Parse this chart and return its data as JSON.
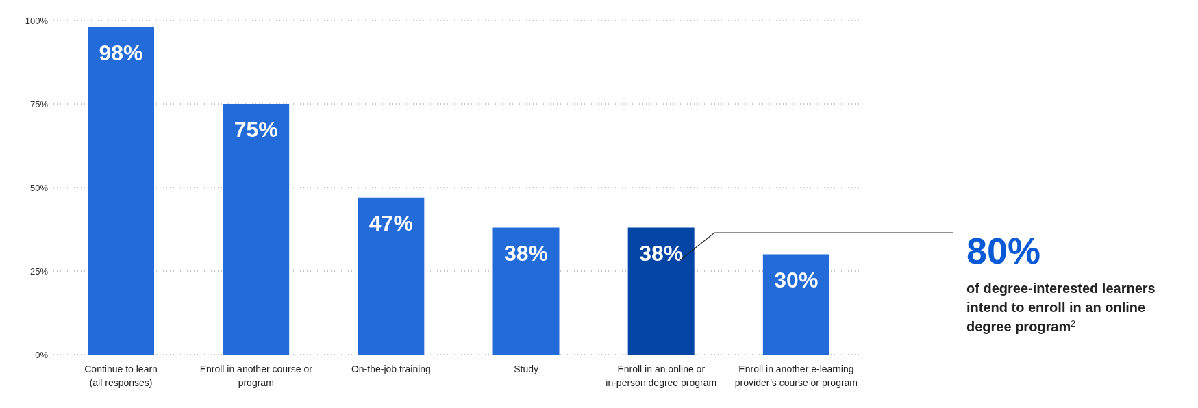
{
  "chart_data": {
    "type": "bar",
    "categories": [
      "Continue to learn\n(all responses)",
      "Enroll in another course or\nprogram",
      "On-the-job training",
      "Study",
      "Enroll in an online or\nin-person degree program",
      "Enroll in another e-learning\nprovider’s course or program"
    ],
    "values": [
      98,
      75,
      47,
      38,
      38,
      30
    ],
    "colors": [
      "#226bd9",
      "#226bd9",
      "#226bd9",
      "#226bd9",
      "#0345a5",
      "#226bd9"
    ],
    "value_labels": [
      "98%",
      "75%",
      "47%",
      "38%",
      "38%",
      "30%"
    ],
    "ylim": [
      0,
      100
    ],
    "yticks": [
      {
        "value": 0,
        "label": "0%"
      },
      {
        "value": 25,
        "label": "25%"
      },
      {
        "value": 50,
        "label": "50%"
      },
      {
        "value": 75,
        "label": "75%"
      },
      {
        "value": 100,
        "label": "100%"
      }
    ],
    "grid": "y",
    "annotations": [
      "80%",
      "of degree-interested learners intend to enroll in an online degree program$^{2}$"
    ]
  }
}
